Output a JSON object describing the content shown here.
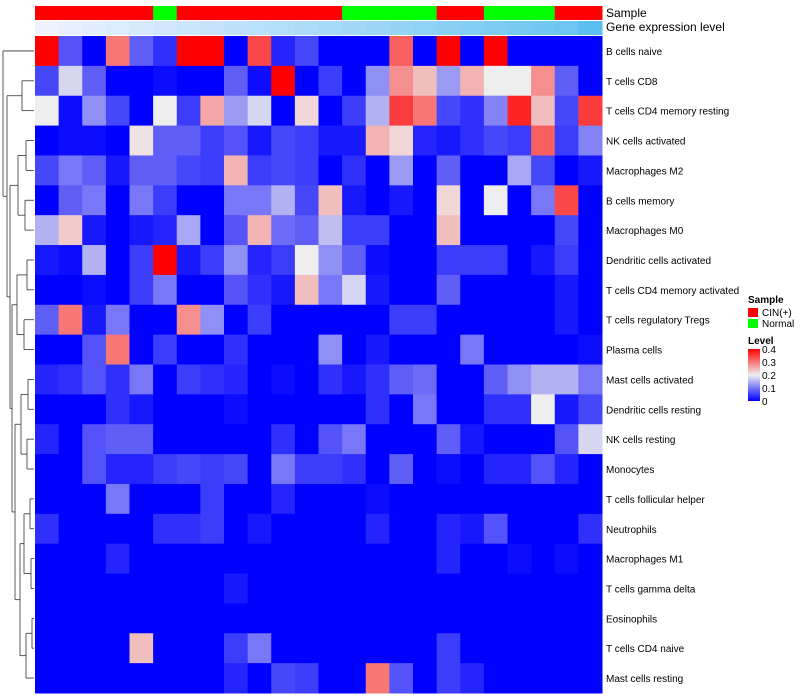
{
  "chart_data": {
    "type": "heatmap",
    "annotations": [
      {
        "name": "Sample",
        "groups": [
          "CIN(+)",
          "CIN(+)",
          "CIN(+)",
          "CIN(+)",
          "CIN(+)",
          "Normal",
          "CIN(+)",
          "CIN(+)",
          "CIN(+)",
          "CIN(+)",
          "CIN(+)",
          "CIN(+)",
          "CIN(+)",
          "Normal",
          "Normal",
          "Normal",
          "Normal",
          "CIN(+)",
          "CIN(+)",
          "Normal",
          "Normal",
          "Normal",
          "CIN(+)",
          "CIN(+)"
        ]
      },
      {
        "name": "Gene expression level",
        "shades": [
          0.0,
          0.04,
          0.08,
          0.12,
          0.16,
          0.2,
          0.24,
          0.28,
          0.32,
          0.36,
          0.4,
          0.44,
          0.48,
          0.52,
          0.56,
          0.6,
          0.64,
          0.68,
          0.72,
          0.76,
          0.8,
          0.84,
          0.88,
          1.0
        ]
      }
    ],
    "rows": [
      "B cells naive",
      "T cells CD8",
      "T cells CD4 memory resting",
      "NK cells activated",
      "Macrophages M2",
      "B cells memory",
      "Macrophages M0",
      "Dendritic cells activated",
      "T cells CD4 memory activated",
      "T cells regulatory  Tregs",
      "Plasma cells",
      "Mast cells activated",
      "Dendritic cells resting",
      "NK cells resting",
      "Monocytes",
      "T cells follicular helper",
      "Neutrophils",
      "Macrophages M1",
      "T cells gamma delta",
      "Eosinophils",
      "T cells CD4 naive",
      "Mast cells resting"
    ],
    "values": [
      [
        0.4,
        0.07,
        0.0,
        0.3,
        0.08,
        0.04,
        0.4,
        0.4,
        0.0,
        0.34,
        0.03,
        0.06,
        0.0,
        0.0,
        0.0,
        0.32,
        0.0,
        0.4,
        0.0,
        0.4,
        0.0,
        0.0,
        0.0,
        0.0
      ],
      [
        0.06,
        0.18,
        0.08,
        0.0,
        0.0,
        0.01,
        0.0,
        0.0,
        0.08,
        0.01,
        0.4,
        0.0,
        0.05,
        0.0,
        0.12,
        0.28,
        0.24,
        0.13,
        0.25,
        0.2,
        0.2,
        0.28,
        0.08,
        0.0
      ],
      [
        0.2,
        0.01,
        0.12,
        0.06,
        0.0,
        0.2,
        0.05,
        0.26,
        0.13,
        0.18,
        0.0,
        0.22,
        0.0,
        0.05,
        0.15,
        0.35,
        0.3,
        0.06,
        0.04,
        0.11,
        0.37,
        0.24,
        0.06,
        0.35
      ],
      [
        0.0,
        0.01,
        0.01,
        0.0,
        0.21,
        0.08,
        0.08,
        0.05,
        0.07,
        0.02,
        0.06,
        0.05,
        0.02,
        0.02,
        0.25,
        0.22,
        0.03,
        0.02,
        0.04,
        0.06,
        0.05,
        0.32,
        0.05,
        0.11
      ],
      [
        0.06,
        0.1,
        0.08,
        0.02,
        0.08,
        0.08,
        0.06,
        0.05,
        0.25,
        0.05,
        0.06,
        0.05,
        0.0,
        0.04,
        0.0,
        0.13,
        0.0,
        0.08,
        0.0,
        0.0,
        0.14,
        0.06,
        0.0,
        0.02
      ],
      [
        0.0,
        0.08,
        0.1,
        0.0,
        0.1,
        0.05,
        0.0,
        0.0,
        0.1,
        0.1,
        0.15,
        0.06,
        0.24,
        0.02,
        0.0,
        0.02,
        0.0,
        0.22,
        0.0,
        0.2,
        0.0,
        0.1,
        0.34,
        0.0
      ],
      [
        0.15,
        0.23,
        0.02,
        0.0,
        0.02,
        0.03,
        0.14,
        0.0,
        0.07,
        0.25,
        0.09,
        0.08,
        0.16,
        0.05,
        0.05,
        0.0,
        0.0,
        0.24,
        0.0,
        0.0,
        0.0,
        0.0,
        0.06,
        0.0
      ],
      [
        0.02,
        0.01,
        0.15,
        0.0,
        0.05,
        0.4,
        0.02,
        0.05,
        0.12,
        0.03,
        0.05,
        0.2,
        0.12,
        0.08,
        0.01,
        0.0,
        0.0,
        0.05,
        0.05,
        0.05,
        0.0,
        0.02,
        0.05,
        0.0
      ],
      [
        0.0,
        0.0,
        0.01,
        0.0,
        0.05,
        0.1,
        0.0,
        0.0,
        0.07,
        0.04,
        0.02,
        0.24,
        0.1,
        0.18,
        0.02,
        0.0,
        0.0,
        0.08,
        0.0,
        0.0,
        0.0,
        0.0,
        0.02,
        0.0
      ],
      [
        0.08,
        0.3,
        0.02,
        0.1,
        0.0,
        0.0,
        0.28,
        0.12,
        0.0,
        0.05,
        0.0,
        0.0,
        0.0,
        0.0,
        0.0,
        0.05,
        0.05,
        0.0,
        0.0,
        0.0,
        0.0,
        0.0,
        0.02,
        0.0
      ],
      [
        0.0,
        0.0,
        0.07,
        0.3,
        0.0,
        0.05,
        0.0,
        0.0,
        0.04,
        0.0,
        0.0,
        0.0,
        0.12,
        0.0,
        0.02,
        0.0,
        0.0,
        0.0,
        0.1,
        0.0,
        0.0,
        0.0,
        0.0,
        0.01
      ],
      [
        0.03,
        0.04,
        0.07,
        0.04,
        0.1,
        0.0,
        0.05,
        0.04,
        0.03,
        0.0,
        0.01,
        0.0,
        0.04,
        0.02,
        0.04,
        0.08,
        0.09,
        0.0,
        0.0,
        0.08,
        0.12,
        0.15,
        0.15,
        0.1
      ],
      [
        0.0,
        0.0,
        0.0,
        0.04,
        0.02,
        0.0,
        0.0,
        0.0,
        0.01,
        0.0,
        0.0,
        0.0,
        0.0,
        0.0,
        0.04,
        0.0,
        0.1,
        0.0,
        0.0,
        0.04,
        0.04,
        0.2,
        0.02,
        0.06
      ],
      [
        0.03,
        0.0,
        0.07,
        0.08,
        0.08,
        0.0,
        0.0,
        0.0,
        0.0,
        0.0,
        0.04,
        0.0,
        0.07,
        0.1,
        0.0,
        0.0,
        0.0,
        0.08,
        0.02,
        0.0,
        0.0,
        0.0,
        0.07,
        0.18
      ],
      [
        0.0,
        0.0,
        0.07,
        0.03,
        0.03,
        0.05,
        0.06,
        0.05,
        0.06,
        0.0,
        0.1,
        0.05,
        0.05,
        0.04,
        0.0,
        0.08,
        0.0,
        0.01,
        0.0,
        0.03,
        0.03,
        0.07,
        0.03,
        0.0
      ],
      [
        0.0,
        0.0,
        0.0,
        0.1,
        0.0,
        0.0,
        0.0,
        0.05,
        0.0,
        0.0,
        0.03,
        0.0,
        0.0,
        0.0,
        0.01,
        0.0,
        0.0,
        0.0,
        0.0,
        0.0,
        0.0,
        0.0,
        0.0,
        0.0
      ],
      [
        0.04,
        0.0,
        0.0,
        0.0,
        0.0,
        0.04,
        0.04,
        0.05,
        0.0,
        0.02,
        0.0,
        0.0,
        0.0,
        0.0,
        0.03,
        0.0,
        0.0,
        0.03,
        0.02,
        0.07,
        0.0,
        0.0,
        0.0,
        0.04
      ],
      [
        0.0,
        0.0,
        0.0,
        0.03,
        0.0,
        0.0,
        0.0,
        0.0,
        0.0,
        0.0,
        0.0,
        0.0,
        0.0,
        0.0,
        0.0,
        0.0,
        0.0,
        0.03,
        0.0,
        0.0,
        0.01,
        0.0,
        0.01,
        0.0
      ],
      [
        0.0,
        0.0,
        0.0,
        0.0,
        0.0,
        0.0,
        0.0,
        0.0,
        0.02,
        0.0,
        0.0,
        0.0,
        0.0,
        0.0,
        0.0,
        0.0,
        0.0,
        0.0,
        0.0,
        0.0,
        0.0,
        0.0,
        0.0,
        0.0
      ],
      [
        0.0,
        0.0,
        0.0,
        0.0,
        0.0,
        0.0,
        0.0,
        0.0,
        0.0,
        0.0,
        0.0,
        0.0,
        0.0,
        0.0,
        0.0,
        0.0,
        0.0,
        0.0,
        0.0,
        0.0,
        0.0,
        0.0,
        0.0,
        0.0
      ],
      [
        0.0,
        0.0,
        0.0,
        0.0,
        0.24,
        0.0,
        0.0,
        0.0,
        0.05,
        0.1,
        0.0,
        0.0,
        0.0,
        0.0,
        0.0,
        0.0,
        0.0,
        0.05,
        0.0,
        0.0,
        0.0,
        0.0,
        0.0,
        0.0
      ],
      [
        0.0,
        0.0,
        0.0,
        0.0,
        0.0,
        0.0,
        0.0,
        0.0,
        0.03,
        0.0,
        0.06,
        0.05,
        0.0,
        0.0,
        0.3,
        0.07,
        0.0,
        0.05,
        0.03,
        0.0,
        0.0,
        0.0,
        0.0,
        0.0
      ]
    ],
    "color_scale": {
      "min": 0,
      "max": 0.4,
      "low": "#0000ff",
      "mid": "#eeeeee",
      "high": "#ff0000",
      "mid_value": 0.2
    },
    "legend": {
      "sample_title": "Sample",
      "sample_items": [
        {
          "label": "CIN(+)",
          "color": "#ff0000"
        },
        {
          "label": "Normal",
          "color": "#00ff00"
        }
      ],
      "level_title": "Level",
      "level_ticks": [
        "0.4",
        "0.3",
        "0.2",
        "0.1",
        "0"
      ]
    },
    "annotation_colors": {
      "CIN(+)": "#ff0000",
      "Normal": "#00ff00",
      "expr_low": "#eef2ff",
      "expr_high": "#5bc0f0"
    }
  }
}
